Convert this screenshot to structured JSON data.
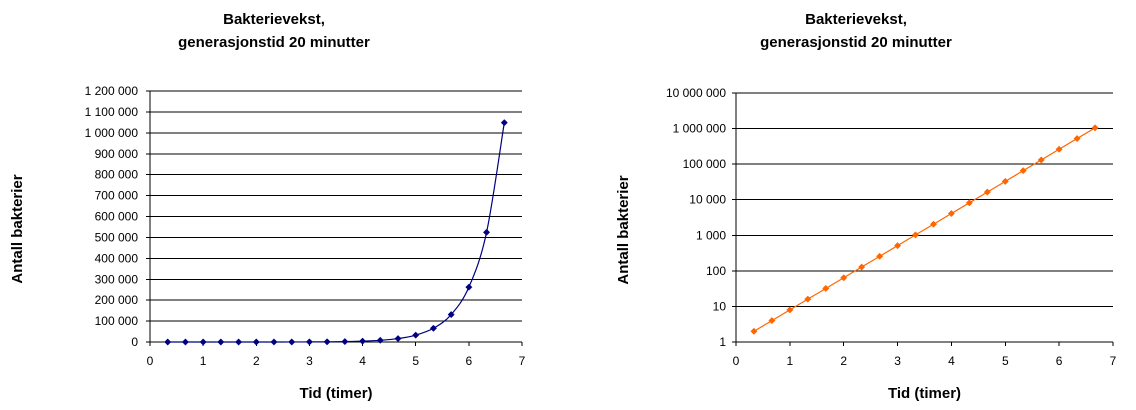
{
  "chart_data": [
    {
      "type": "line",
      "title_lines": [
        "Bakterievekst,",
        "generasjonstid 20 minutter"
      ],
      "xlabel": "Tid (timer)",
      "ylabel": "Antall bakterier",
      "xlim": [
        0,
        7
      ],
      "ylim": [
        0,
        1200000
      ],
      "yscale": "linear",
      "xticks": [
        0,
        1,
        2,
        3,
        4,
        5,
        6,
        7
      ],
      "xtick_labels": [
        "0",
        "1",
        "2",
        "3",
        "4",
        "5",
        "6",
        "7"
      ],
      "yticks": [
        0,
        100000,
        200000,
        300000,
        400000,
        500000,
        600000,
        700000,
        800000,
        900000,
        1000000,
        1100000,
        1200000
      ],
      "ytick_labels": [
        "0",
        "100 000",
        "200 000",
        "300 000",
        "400 000",
        "500 000",
        "600 000",
        "700 000",
        "800 000",
        "900 000",
        "1 000 000",
        "1 100 000",
        "1 200 000"
      ],
      "grid": "horizontal",
      "color": "#000080",
      "marker": "diamond",
      "series": [
        {
          "x": [
            0.333,
            0.667,
            1,
            1.333,
            1.667,
            2,
            2.333,
            2.667,
            3,
            3.333,
            3.667,
            4,
            4.333,
            4.667,
            5,
            5.333,
            5.667,
            6,
            6.333,
            6.667
          ],
          "values": [
            2,
            4,
            8,
            16,
            32,
            64,
            128,
            256,
            512,
            1024,
            2048,
            4096,
            8192,
            16384,
            32768,
            65536,
            131072,
            262144,
            524288,
            1048576
          ]
        }
      ]
    },
    {
      "type": "line",
      "title_lines": [
        "Bakterievekst,",
        "generasjonstid 20 minutter"
      ],
      "xlabel": "Tid (timer)",
      "ylabel": "Antall bakterier",
      "xlim": [
        0,
        7
      ],
      "ylim": [
        1,
        10000000
      ],
      "yscale": "log",
      "xticks": [
        0,
        1,
        2,
        3,
        4,
        5,
        6,
        7
      ],
      "xtick_labels": [
        "0",
        "1",
        "2",
        "3",
        "4",
        "5",
        "6",
        "7"
      ],
      "yticks": [
        1,
        10,
        100,
        1000,
        10000,
        100000,
        1000000,
        10000000
      ],
      "ytick_labels": [
        "1",
        "10",
        "100",
        "1 000",
        "10 000",
        "100 000",
        "1 000 000",
        "10 000 000"
      ],
      "grid": "horizontal",
      "color": "#FF6600",
      "marker": "diamond",
      "series": [
        {
          "x": [
            0.333,
            0.667,
            1,
            1.333,
            1.667,
            2,
            2.333,
            2.667,
            3,
            3.333,
            3.667,
            4,
            4.333,
            4.667,
            5,
            5.333,
            5.667,
            6,
            6.333,
            6.667
          ],
          "values": [
            2,
            4,
            8,
            16,
            32,
            64,
            128,
            256,
            512,
            1024,
            2048,
            4096,
            8192,
            16384,
            32768,
            65536,
            131072,
            262144,
            524288,
            1048576
          ]
        }
      ]
    }
  ]
}
